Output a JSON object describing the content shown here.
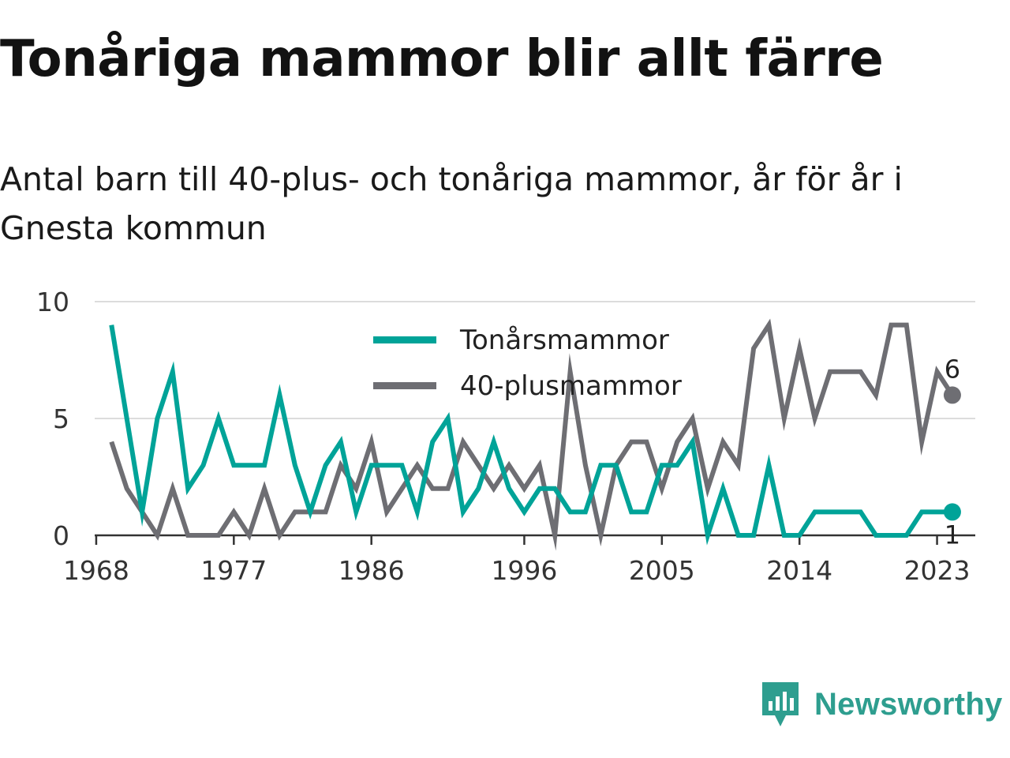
{
  "title": "Tonåriga mammor blir allt färre",
  "subtitle": "Antal barn till 40-plus- och tonåriga mammor, år för år i Gnesta kommun",
  "brand": {
    "name": "Newsworthy",
    "icon": "newsworthy-logo-icon",
    "color": "#2e9e8f"
  },
  "chart_data": {
    "type": "line",
    "x": [
      1969,
      1970,
      1971,
      1972,
      1973,
      1974,
      1975,
      1976,
      1977,
      1978,
      1979,
      1980,
      1981,
      1982,
      1983,
      1984,
      1985,
      1986,
      1987,
      1988,
      1989,
      1990,
      1991,
      1992,
      1993,
      1994,
      1995,
      1996,
      1997,
      1998,
      1999,
      2000,
      2001,
      2002,
      2003,
      2004,
      2005,
      2006,
      2007,
      2008,
      2009,
      2010,
      2011,
      2012,
      2013,
      2014,
      2015,
      2016,
      2017,
      2018,
      2019,
      2020,
      2021,
      2022,
      2023,
      2024
    ],
    "series": [
      {
        "name": "Tonårsmammor",
        "color": "#00a398",
        "values": [
          9,
          5,
          1,
          5,
          7,
          2,
          3,
          5,
          3,
          3,
          3,
          6,
          3,
          1,
          3,
          4,
          1,
          3,
          3,
          3,
          1,
          4,
          5,
          1,
          2,
          4,
          2,
          1,
          2,
          2,
          1,
          1,
          3,
          3,
          1,
          1,
          3,
          3,
          4,
          0,
          2,
          0,
          0,
          3,
          0,
          0,
          1,
          1,
          1,
          1,
          0,
          0,
          0,
          1,
          1,
          1
        ]
      },
      {
        "name": "40-plusmammor",
        "color": "#6e6e73",
        "values": [
          4,
          2,
          1,
          0,
          2,
          0,
          0,
          0,
          1,
          0,
          2,
          0,
          1,
          1,
          1,
          3,
          2,
          4,
          1,
          2,
          3,
          2,
          2,
          4,
          3,
          2,
          3,
          2,
          3,
          0,
          7,
          3,
          0,
          3,
          4,
          4,
          2,
          4,
          5,
          2,
          4,
          3,
          8,
          9,
          5,
          8,
          5,
          7,
          7,
          7,
          6,
          9,
          9,
          4,
          7,
          6
        ]
      }
    ],
    "end_labels": [
      "6",
      "1"
    ],
    "x_ticks": [
      "1968",
      "1977",
      "1986",
      "1996",
      "2005",
      "2014",
      "2023"
    ],
    "y_ticks": [
      "0",
      "5",
      "10"
    ],
    "ylim": [
      0,
      10
    ],
    "xlim": [
      1967.9,
      2025.5
    ],
    "grid": "horizontal",
    "legend_position": "top-center"
  }
}
